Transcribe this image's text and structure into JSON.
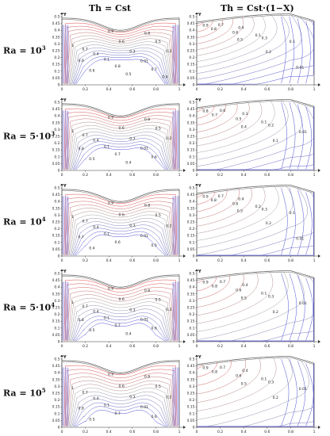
{
  "columns": [
    {
      "title": "Th = Cst"
    },
    {
      "title": "Th = Cst·(1−X)"
    }
  ],
  "rows": [
    {
      "label_base": "Ra = ",
      "label_coef": "",
      "label_exp": "3",
      "ra_value": 1000
    },
    {
      "label_base": "Ra = ",
      "label_coef": "5·",
      "label_exp": "3",
      "ra_value": 5000
    },
    {
      "label_base": "Ra = ",
      "label_coef": "",
      "label_exp": "4",
      "ra_value": 10000
    },
    {
      "label_base": "Ra = ",
      "label_coef": "5·",
      "label_exp": "4",
      "ra_value": 50000
    },
    {
      "label_base": "Ra = ",
      "label_coef": "",
      "label_exp": "5",
      "ra_value": 100000
    }
  ],
  "axes": {
    "x_label": "X",
    "y_label": "Y",
    "x_ticks": [
      "0",
      "0.2",
      "0.4",
      "0.6",
      "0.8",
      "1"
    ],
    "y_ticks": [
      "0",
      "0.05",
      "0.1",
      "0.15",
      "0.2",
      "0.25",
      "0.3",
      "0.35",
      "0.4",
      "0.45",
      "0.5"
    ],
    "x_range": [
      0,
      1
    ],
    "y_range": [
      0,
      0.5
    ]
  },
  "colors": {
    "hot": "#e03030",
    "cold": "#3a3ad0",
    "mid": "#9a9a9a",
    "wall": "#666666"
  },
  "panels": [
    {
      "row": 0,
      "col": 0,
      "labels": [
        "1",
        "0.9",
        "0.8",
        "0.7",
        "0.6",
        "0.5",
        "0.4",
        "0.3",
        "0.2",
        "0.1",
        "0.01",
        "0.9",
        "0.8",
        "0.7",
        "0.6",
        "0.5",
        "0.4"
      ]
    },
    {
      "row": 0,
      "col": 1,
      "labels": [
        "0.9",
        "0.8",
        "0.7",
        "0.6",
        "0.5",
        "0.4",
        "0.3",
        "0.2",
        "0.1",
        "0.1",
        "0.01"
      ]
    },
    {
      "row": 1,
      "col": 0,
      "labels": [
        "1",
        "0.9",
        "0.8",
        "0.7",
        "0.6",
        "0.5",
        "0.4",
        "0.3",
        "0.2",
        "0.1",
        "0.01",
        "0.8",
        "0.7",
        "0.6",
        "0.5",
        "0.4"
      ]
    },
    {
      "row": 1,
      "col": 1,
      "labels": [
        "0.8",
        "0.7",
        "0.6",
        "0.5",
        "0.4",
        "0.3",
        "0.2",
        "0.1",
        "0.1",
        "0.01"
      ]
    },
    {
      "row": 2,
      "col": 0,
      "labels": [
        "1",
        "0.9",
        "0.8",
        "0.7",
        "0.6",
        "0.5",
        "0.4",
        "0.3",
        "0.2",
        "0.1",
        "0.01",
        "0.7",
        "0.6",
        "0.5",
        "0.4"
      ]
    },
    {
      "row": 2,
      "col": 1,
      "labels": [
        "0.9",
        "0.8",
        "0.7",
        "0.6",
        "0.5",
        "0.4",
        "0.3",
        "0.2",
        "0.2",
        "0.1",
        "0.01"
      ]
    },
    {
      "row": 3,
      "col": 0,
      "labels": [
        "1",
        "0.9",
        "0.8",
        "0.7",
        "0.6",
        "0.5",
        "0.4",
        "0.3",
        "0.2",
        "0.1",
        "0.01",
        "0.8",
        "0.7",
        "0.6",
        "0.5",
        "0.4"
      ]
    },
    {
      "row": 3,
      "col": 1,
      "labels": [
        "0.9",
        "0.8",
        "0.7",
        "0.6",
        "0.5",
        "0.4",
        "0.3",
        "0.2",
        "0.1",
        "0.01"
      ]
    },
    {
      "row": 4,
      "col": 0,
      "labels": [
        "1",
        "0.9",
        "0.8",
        "0.7",
        "0.6",
        "0.5",
        "0.4",
        "0.3",
        "0.2",
        "0.1",
        "0.01",
        "0.8",
        "0.7",
        "0.6",
        "0.5"
      ]
    },
    {
      "row": 4,
      "col": 1,
      "labels": [
        "0.9",
        "0.8",
        "0.7",
        "0.6",
        "0.5",
        "0.4",
        "0.3",
        "0.2",
        "0.1",
        "0.01"
      ]
    }
  ]
}
